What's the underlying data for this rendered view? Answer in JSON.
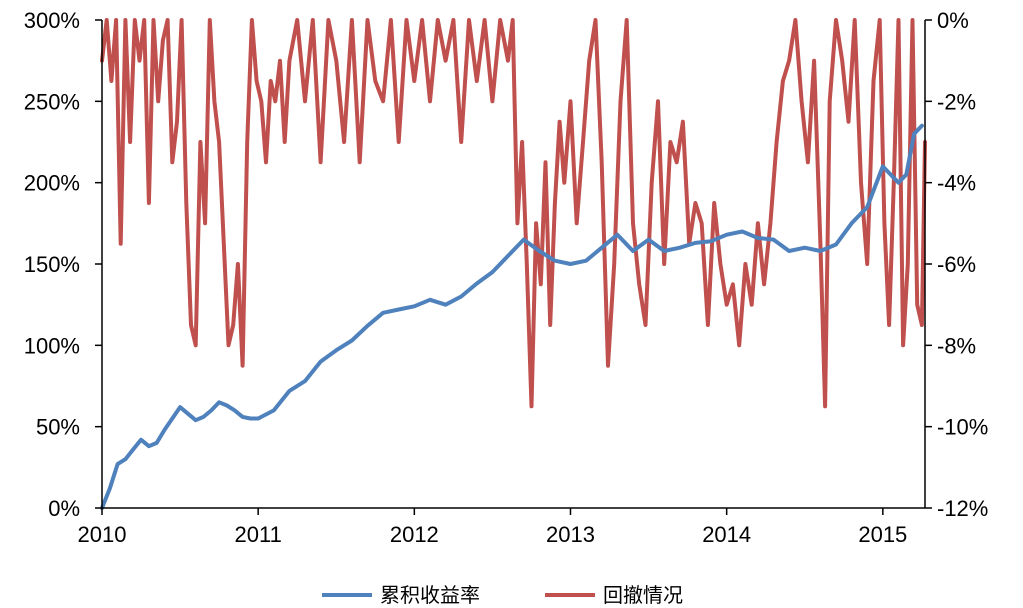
{
  "chart_data": {
    "type": "line",
    "title": "",
    "xlabel": "",
    "ylabel": "",
    "x_ticks": [
      "2010",
      "2011",
      "2012",
      "2013",
      "2014",
      "2015"
    ],
    "x_range": [
      2010.0,
      2015.27
    ],
    "y_left_ticks": [
      "0%",
      "50%",
      "100%",
      "150%",
      "200%",
      "250%",
      "300%"
    ],
    "y_left_range": [
      0,
      300
    ],
    "y_right_ticks": [
      "-12%",
      "-10%",
      "-8%",
      "-6%",
      "-4%",
      "-2%",
      "0%"
    ],
    "y_right_range": [
      -12,
      0
    ],
    "grid": false,
    "legend_position": "bottom",
    "colors": {
      "cumulative": "#4f81bd",
      "drawdown": "#c0504d"
    },
    "series": [
      {
        "name": "累积收益率",
        "axis": "left",
        "x": [
          2010.0,
          2010.05,
          2010.1,
          2010.15,
          2010.2,
          2010.25,
          2010.3,
          2010.35,
          2010.4,
          2010.45,
          2010.5,
          2010.55,
          2010.6,
          2010.65,
          2010.7,
          2010.75,
          2010.8,
          2010.85,
          2010.9,
          2010.95,
          2011.0,
          2011.1,
          2011.2,
          2011.3,
          2011.4,
          2011.5,
          2011.6,
          2011.7,
          2011.8,
          2011.9,
          2012.0,
          2012.1,
          2012.2,
          2012.3,
          2012.4,
          2012.5,
          2012.6,
          2012.7,
          2012.8,
          2012.9,
          2013.0,
          2013.1,
          2013.2,
          2013.3,
          2013.4,
          2013.5,
          2013.6,
          2013.7,
          2013.8,
          2013.9,
          2014.0,
          2014.1,
          2014.2,
          2014.3,
          2014.4,
          2014.5,
          2014.6,
          2014.7,
          2014.8,
          2014.9,
          2015.0,
          2015.05,
          2015.1,
          2015.15,
          2015.2,
          2015.25
        ],
        "values": [
          0,
          12,
          27,
          30,
          36,
          42,
          38,
          40,
          48,
          55,
          62,
          58,
          54,
          56,
          60,
          65,
          63,
          60,
          56,
          55,
          55,
          60,
          72,
          78,
          90,
          97,
          103,
          112,
          120,
          122,
          124,
          128,
          125,
          130,
          138,
          145,
          155,
          165,
          158,
          152,
          150,
          152,
          160,
          168,
          158,
          165,
          158,
          160,
          163,
          164,
          168,
          170,
          166,
          165,
          158,
          160,
          158,
          162,
          175,
          185,
          210,
          205,
          200,
          205,
          230,
          235
        ]
      },
      {
        "name": "回撤情况",
        "axis": "right",
        "x": [
          2010.0,
          2010.03,
          2010.06,
          2010.09,
          2010.12,
          2010.15,
          2010.18,
          2010.21,
          2010.24,
          2010.27,
          2010.3,
          2010.33,
          2010.36,
          2010.39,
          2010.42,
          2010.45,
          2010.48,
          2010.51,
          2010.54,
          2010.57,
          2010.6,
          2010.63,
          2010.66,
          2010.69,
          2010.72,
          2010.75,
          2010.78,
          2010.81,
          2010.84,
          2010.87,
          2010.9,
          2010.93,
          2010.96,
          2010.99,
          2011.02,
          2011.05,
          2011.08,
          2011.11,
          2011.14,
          2011.17,
          2011.2,
          2011.25,
          2011.3,
          2011.35,
          2011.4,
          2011.45,
          2011.5,
          2011.55,
          2011.6,
          2011.65,
          2011.7,
          2011.75,
          2011.8,
          2011.85,
          2011.9,
          2011.95,
          2012.0,
          2012.05,
          2012.1,
          2012.15,
          2012.2,
          2012.25,
          2012.3,
          2012.35,
          2012.4,
          2012.45,
          2012.5,
          2012.55,
          2012.6,
          2012.63,
          2012.66,
          2012.69,
          2012.72,
          2012.75,
          2012.78,
          2012.81,
          2012.84,
          2012.87,
          2012.9,
          2012.93,
          2012.96,
          2013.0,
          2013.04,
          2013.08,
          2013.12,
          2013.16,
          2013.2,
          2013.24,
          2013.28,
          2013.32,
          2013.36,
          2013.4,
          2013.44,
          2013.48,
          2013.52,
          2013.56,
          2013.6,
          2013.64,
          2013.68,
          2013.72,
          2013.76,
          2013.8,
          2013.84,
          2013.88,
          2013.92,
          2013.96,
          2014.0,
          2014.04,
          2014.08,
          2014.12,
          2014.16,
          2014.2,
          2014.24,
          2014.28,
          2014.32,
          2014.36,
          2014.4,
          2014.44,
          2014.48,
          2014.52,
          2014.56,
          2014.6,
          2014.63,
          2014.66,
          2014.7,
          2014.74,
          2014.78,
          2014.82,
          2014.86,
          2014.9,
          2014.94,
          2014.98,
          2015.01,
          2015.04,
          2015.07,
          2015.1,
          2015.13,
          2015.16,
          2015.19,
          2015.22,
          2015.25,
          2015.27
        ],
        "values": [
          -1.0,
          0,
          -1.5,
          0,
          -5.5,
          0,
          -3.0,
          0,
          -1.0,
          0,
          -4.5,
          0,
          -2.0,
          -0.5,
          0,
          -3.5,
          -2.5,
          0,
          -4.5,
          -7.5,
          -8.0,
          -3.0,
          -5.0,
          0,
          -2.0,
          -3.0,
          -5.5,
          -8.0,
          -7.5,
          -6.0,
          -8.5,
          -3.0,
          0,
          -1.5,
          -2.0,
          -3.5,
          -1.5,
          -2.0,
          -1.0,
          -3.0,
          -1.0,
          0,
          -2.0,
          0,
          -3.5,
          0,
          -1.0,
          -3.0,
          0,
          -3.5,
          0,
          -1.5,
          -2.0,
          0,
          -3.0,
          0,
          -1.5,
          0,
          -2.0,
          0,
          -1.0,
          0,
          -3.0,
          0,
          -1.5,
          0,
          -2.0,
          0,
          -1.0,
          0,
          -5.0,
          -3.0,
          -6.0,
          -9.5,
          -5.0,
          -6.5,
          -3.5,
          -7.5,
          -4.5,
          -2.5,
          -4.0,
          -2.0,
          -5.0,
          -3.0,
          -1.0,
          0,
          -3.5,
          -8.5,
          -6.0,
          -2.0,
          0,
          -5.0,
          -6.5,
          -7.5,
          -4.0,
          -2.0,
          -6.0,
          -3.0,
          -3.5,
          -2.5,
          -5.5,
          -4.5,
          -5.0,
          -7.5,
          -4.5,
          -6.0,
          -7.0,
          -6.5,
          -8.0,
          -6.0,
          -7.0,
          -5.0,
          -6.5,
          -5.0,
          -3.0,
          -1.5,
          -1.0,
          0,
          -2.0,
          -3.5,
          -1.0,
          -5.5,
          -9.5,
          -2.0,
          0,
          -1.0,
          -2.5,
          0,
          -4.0,
          -6.0,
          -1.5,
          0,
          -5.0,
          -7.5,
          -4.0,
          0,
          -8.0,
          -6.0,
          0,
          -7.0,
          -7.5,
          -3.0
        ]
      }
    ]
  }
}
